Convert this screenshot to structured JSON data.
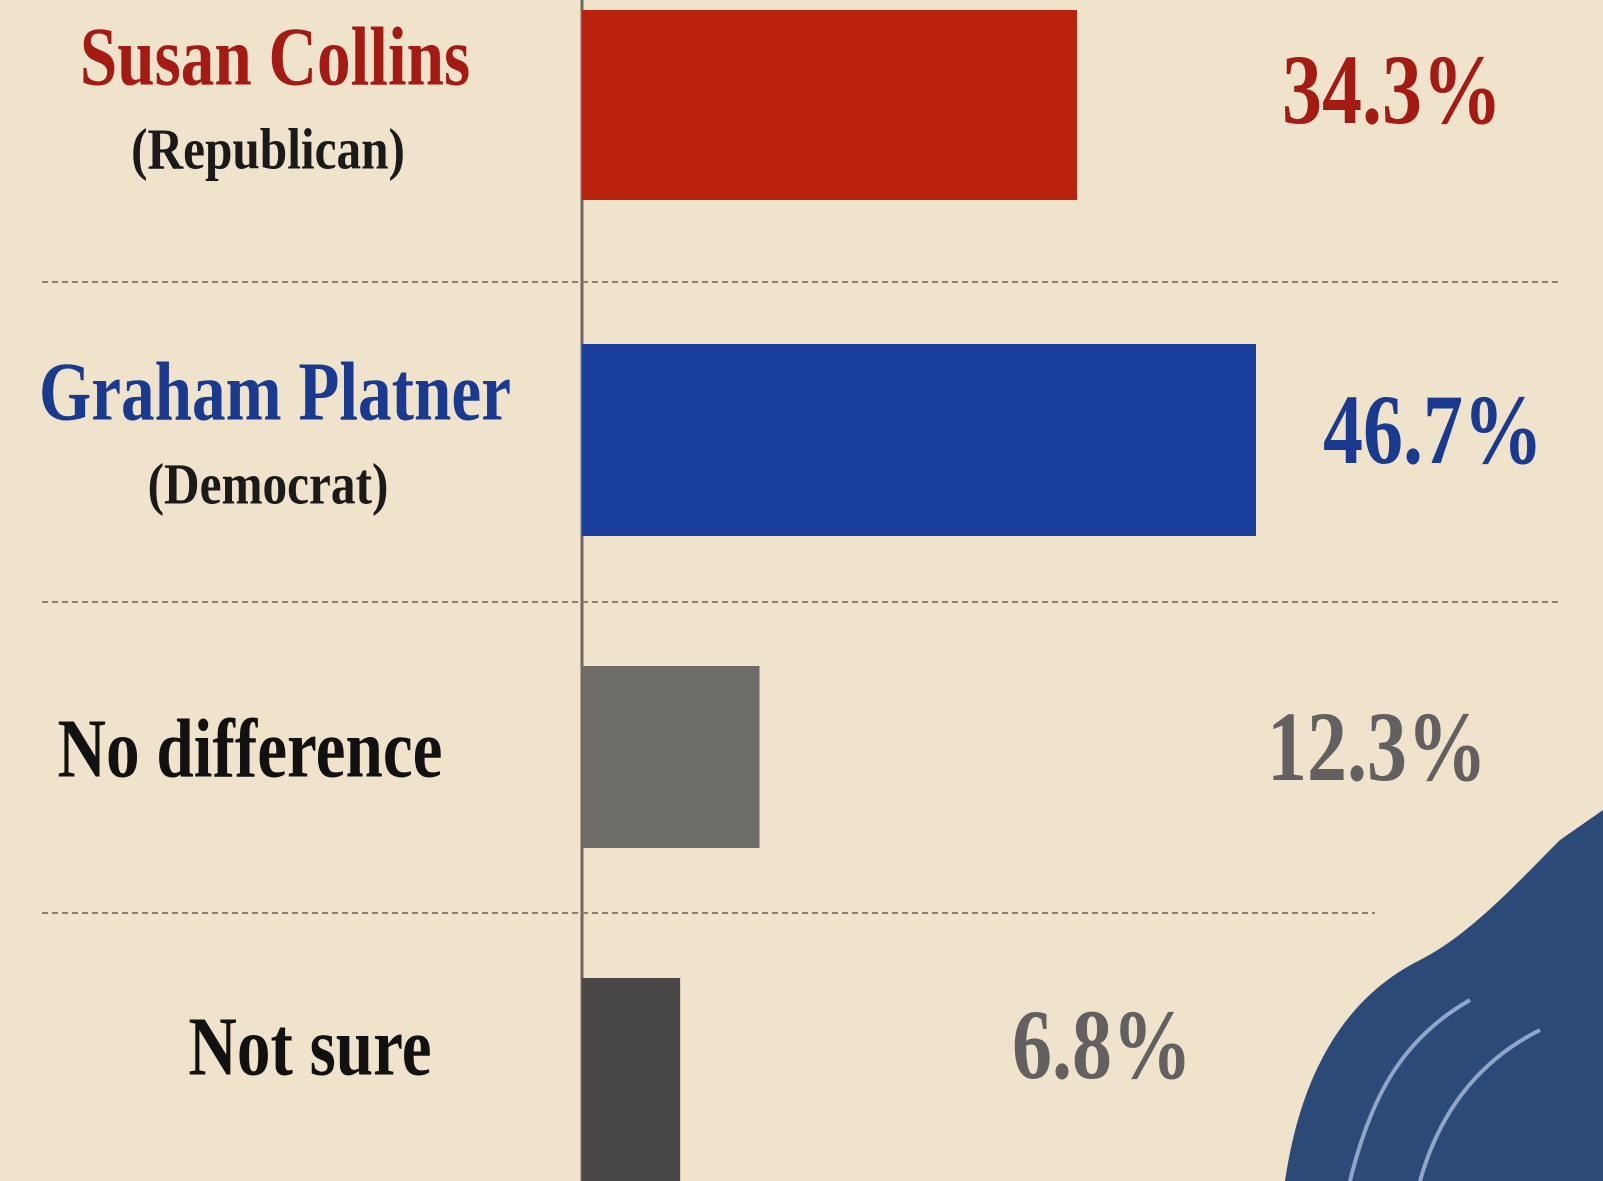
{
  "chart_data": {
    "type": "bar",
    "orientation": "horizontal",
    "categories": [
      "Susan Collins",
      "Graham Platner",
      "No difference",
      "Not sure"
    ],
    "category_subtitles": [
      "(Republican)",
      "(Democrat)",
      null,
      null
    ],
    "values": [
      34.3,
      46.7,
      12.3,
      6.8
    ],
    "value_labels": [
      "34.3%",
      "46.7%",
      "12.3%",
      "6.8%"
    ],
    "colors": [
      "#b8220f",
      "#1b3f9f",
      "#6e6c69",
      "#474645"
    ],
    "label_colors": [
      "#a31b12",
      "#1a3a8f",
      "#111111",
      "#111111"
    ],
    "value_label_colors": [
      "#a31b12",
      "#1a3a8f",
      "#626060",
      "#626060"
    ]
  }
}
